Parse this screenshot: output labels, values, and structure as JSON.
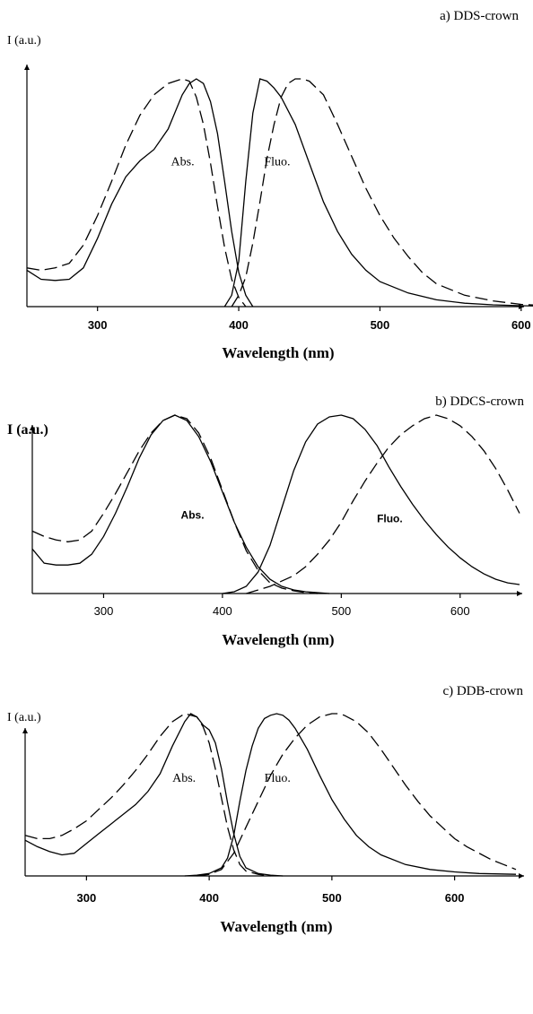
{
  "chart_data": [
    {
      "type": "line",
      "title": "a) DDS-crown",
      "ylabel": "I (a.u.)",
      "xlabel": "Wavelength (nm)",
      "xlim": [
        250,
        630
      ],
      "ylim": [
        0,
        1
      ],
      "xticks": [
        300,
        400,
        500,
        600
      ],
      "annotations": [
        {
          "text": "Abs.",
          "x": 352,
          "y": 0.62
        },
        {
          "text": "Fluo.",
          "x": 418,
          "y": 0.62
        }
      ],
      "series": [
        {
          "style": "solid",
          "x": [
            250,
            260,
            270,
            280,
            290,
            300,
            310,
            320,
            330,
            340,
            350,
            360,
            365,
            370,
            375,
            380,
            385,
            390,
            395,
            400,
            405,
            410
          ],
          "y": [
            0.16,
            0.12,
            0.115,
            0.12,
            0.17,
            0.3,
            0.45,
            0.57,
            0.64,
            0.69,
            0.78,
            0.93,
            0.98,
            1.0,
            0.98,
            0.9,
            0.76,
            0.55,
            0.33,
            0.15,
            0.05,
            0.0
          ]
        },
        {
          "style": "dashed",
          "x": [
            250,
            260,
            270,
            280,
            290,
            300,
            310,
            320,
            330,
            340,
            350,
            360,
            365,
            370,
            375,
            380,
            385,
            390,
            395,
            400,
            405
          ],
          "y": [
            0.17,
            0.16,
            0.17,
            0.19,
            0.27,
            0.4,
            0.55,
            0.71,
            0.84,
            0.93,
            0.98,
            1.0,
            0.99,
            0.92,
            0.8,
            0.63,
            0.44,
            0.26,
            0.12,
            0.04,
            0.0
          ]
        },
        {
          "style": "solid",
          "x": [
            390,
            395,
            400,
            405,
            410,
            415,
            420,
            425,
            430,
            440,
            450,
            460,
            470,
            480,
            490,
            500,
            520,
            540,
            560,
            580,
            600,
            630
          ],
          "y": [
            0.0,
            0.05,
            0.2,
            0.55,
            0.85,
            1.0,
            0.99,
            0.96,
            0.92,
            0.8,
            0.63,
            0.46,
            0.33,
            0.23,
            0.16,
            0.11,
            0.06,
            0.03,
            0.015,
            0.008,
            0.004,
            0.0
          ]
        },
        {
          "style": "dashed",
          "x": [
            395,
            400,
            405,
            410,
            415,
            420,
            425,
            430,
            435,
            440,
            445,
            450,
            460,
            470,
            480,
            490,
            500,
            510,
            520,
            530,
            540,
            560,
            580,
            600,
            630
          ],
          "y": [
            0.0,
            0.05,
            0.13,
            0.28,
            0.46,
            0.65,
            0.8,
            0.92,
            0.98,
            1.0,
            1.0,
            0.99,
            0.93,
            0.8,
            0.66,
            0.52,
            0.4,
            0.3,
            0.22,
            0.15,
            0.1,
            0.05,
            0.025,
            0.01,
            0.0
          ]
        }
      ]
    },
    {
      "type": "line",
      "title": "b) DDCS-crown",
      "ylabel": "I (a.u.)",
      "xlabel": "Wavelength (nm)",
      "xlim": [
        240,
        650
      ],
      "ylim": [
        0,
        1
      ],
      "xticks": [
        300,
        400,
        500,
        600
      ],
      "annotations": [
        {
          "text": "Abs.",
          "x": 365,
          "y": 0.42
        },
        {
          "text": "Fluo.",
          "x": 530,
          "y": 0.4
        }
      ],
      "series": [
        {
          "style": "solid",
          "x": [
            240,
            250,
            260,
            270,
            280,
            290,
            300,
            310,
            320,
            330,
            340,
            350,
            360,
            370,
            380,
            390,
            400,
            410,
            420,
            430,
            440,
            450,
            460,
            470,
            480,
            490
          ],
          "y": [
            0.25,
            0.17,
            0.16,
            0.16,
            0.17,
            0.22,
            0.32,
            0.45,
            0.6,
            0.76,
            0.89,
            0.97,
            1.0,
            0.97,
            0.88,
            0.74,
            0.57,
            0.4,
            0.26,
            0.15,
            0.08,
            0.04,
            0.02,
            0.01,
            0.005,
            0.0
          ]
        },
        {
          "style": "dashed",
          "x": [
            240,
            250,
            260,
            270,
            280,
            290,
            300,
            310,
            320,
            330,
            340,
            350,
            360,
            370,
            380,
            390,
            400,
            410,
            420,
            430,
            440,
            450,
            460,
            470,
            480
          ],
          "y": [
            0.35,
            0.32,
            0.3,
            0.29,
            0.3,
            0.35,
            0.45,
            0.56,
            0.68,
            0.8,
            0.9,
            0.97,
            1.0,
            0.98,
            0.9,
            0.76,
            0.58,
            0.4,
            0.24,
            0.13,
            0.06,
            0.03,
            0.015,
            0.005,
            0.0
          ]
        },
        {
          "style": "solid",
          "x": [
            400,
            410,
            420,
            430,
            440,
            450,
            460,
            470,
            480,
            490,
            500,
            510,
            520,
            530,
            540,
            550,
            560,
            570,
            580,
            590,
            600,
            610,
            620,
            630,
            640,
            650
          ],
          "y": [
            0.0,
            0.01,
            0.04,
            0.12,
            0.27,
            0.48,
            0.69,
            0.85,
            0.95,
            0.99,
            1.0,
            0.98,
            0.92,
            0.83,
            0.71,
            0.6,
            0.5,
            0.41,
            0.33,
            0.26,
            0.2,
            0.15,
            0.11,
            0.08,
            0.06,
            0.05
          ]
        },
        {
          "style": "dashed",
          "x": [
            420,
            440,
            460,
            470,
            480,
            490,
            500,
            510,
            520,
            530,
            540,
            550,
            560,
            570,
            580,
            590,
            600,
            610,
            620,
            630,
            640,
            650
          ],
          "y": [
            0.0,
            0.04,
            0.1,
            0.15,
            0.22,
            0.3,
            0.4,
            0.52,
            0.63,
            0.73,
            0.82,
            0.89,
            0.94,
            0.98,
            1.0,
            0.98,
            0.94,
            0.88,
            0.8,
            0.7,
            0.58,
            0.45
          ]
        }
      ]
    },
    {
      "type": "line",
      "title": "c) DDB-crown",
      "ylabel": "I (a.u.)",
      "xlabel": "Wavelength (nm)",
      "xlim": [
        250,
        650
      ],
      "ylim": [
        0,
        1
      ],
      "xticks": [
        300,
        400,
        500,
        600
      ],
      "annotations": [
        {
          "text": "Abs.",
          "x": 370,
          "y": 0.58
        },
        {
          "text": "Fluo.",
          "x": 445,
          "y": 0.58
        }
      ],
      "series": [
        {
          "style": "solid",
          "x": [
            250,
            260,
            270,
            280,
            290,
            300,
            310,
            320,
            330,
            340,
            350,
            360,
            370,
            380,
            385,
            390,
            395,
            400,
            405,
            410,
            415,
            420,
            425,
            430,
            440,
            450,
            460
          ],
          "y": [
            0.22,
            0.18,
            0.15,
            0.13,
            0.14,
            0.2,
            0.26,
            0.32,
            0.38,
            0.44,
            0.52,
            0.63,
            0.8,
            0.95,
            1.0,
            0.98,
            0.93,
            0.9,
            0.82,
            0.66,
            0.45,
            0.26,
            0.12,
            0.05,
            0.015,
            0.005,
            0.0
          ]
        },
        {
          "style": "dashed",
          "x": [
            250,
            260,
            270,
            280,
            290,
            300,
            310,
            320,
            330,
            340,
            350,
            360,
            370,
            380,
            390,
            395,
            400,
            405,
            410,
            415,
            420,
            425,
            430,
            440,
            450
          ],
          "y": [
            0.25,
            0.23,
            0.23,
            0.25,
            0.29,
            0.34,
            0.41,
            0.48,
            0.56,
            0.65,
            0.75,
            0.86,
            0.95,
            1.0,
            0.98,
            0.92,
            0.82,
            0.66,
            0.48,
            0.3,
            0.16,
            0.07,
            0.03,
            0.01,
            0.0
          ]
        },
        {
          "style": "solid",
          "x": [
            380,
            390,
            400,
            410,
            415,
            420,
            425,
            430,
            435,
            440,
            445,
            450,
            455,
            460,
            465,
            470,
            480,
            490,
            500,
            510,
            520,
            530,
            540,
            560,
            580,
            600,
            620,
            650
          ],
          "y": [
            0.0,
            0.005,
            0.015,
            0.05,
            0.11,
            0.25,
            0.46,
            0.65,
            0.8,
            0.91,
            0.97,
            0.99,
            1.0,
            0.99,
            0.96,
            0.91,
            0.78,
            0.62,
            0.47,
            0.35,
            0.25,
            0.18,
            0.13,
            0.07,
            0.04,
            0.025,
            0.015,
            0.01
          ]
        },
        {
          "style": "dashed",
          "x": [
            390,
            400,
            410,
            420,
            430,
            440,
            450,
            460,
            470,
            480,
            490,
            500,
            505,
            510,
            520,
            530,
            540,
            550,
            560,
            570,
            580,
            590,
            600,
            610,
            620,
            630,
            640,
            650
          ],
          "y": [
            0.0,
            0.01,
            0.04,
            0.14,
            0.3,
            0.46,
            0.62,
            0.75,
            0.85,
            0.93,
            0.98,
            1.0,
            1.0,
            0.99,
            0.95,
            0.88,
            0.78,
            0.67,
            0.56,
            0.46,
            0.37,
            0.3,
            0.23,
            0.18,
            0.14,
            0.1,
            0.07,
            0.04
          ]
        }
      ]
    }
  ]
}
